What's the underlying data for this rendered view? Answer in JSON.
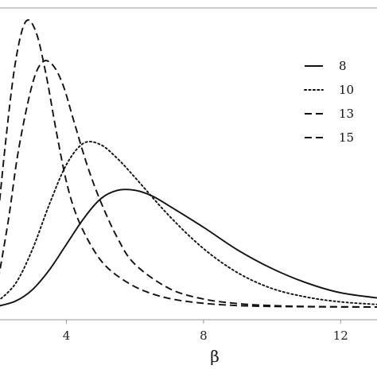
{
  "chart_data": {
    "type": "line",
    "title": "",
    "xlabel": "β",
    "ylabel": "",
    "xlim": [
      1.9,
      13.2
    ],
    "ylim": [
      0,
      1
    ],
    "x_ticks": [
      4,
      8,
      12
    ],
    "x_tick_labels": [
      "4",
      "8",
      "12"
    ],
    "grid": false,
    "legend_position": "right",
    "series": [
      {
        "name": "8",
        "line_style": "solid",
        "x": [
          1.9,
          2.5,
          3.0,
          3.5,
          4.0,
          4.5,
          5.0,
          5.5,
          6.0,
          6.5,
          7.0,
          8.0,
          9.0,
          10.0,
          11.0,
          12.0,
          13.2
        ],
        "y": [
          0.0,
          0.02,
          0.06,
          0.13,
          0.22,
          0.31,
          0.38,
          0.41,
          0.41,
          0.39,
          0.355,
          0.28,
          0.2,
          0.135,
          0.085,
          0.05,
          0.03
        ]
      },
      {
        "name": "10",
        "line_style": "dotted",
        "x": [
          1.9,
          2.5,
          3.0,
          3.5,
          4.0,
          4.5,
          5.0,
          5.5,
          6.0,
          7.0,
          8.0,
          9.0,
          10.0,
          11.0,
          12.0,
          13.2
        ],
        "y": [
          0.01,
          0.08,
          0.2,
          0.36,
          0.5,
          0.575,
          0.57,
          0.52,
          0.455,
          0.32,
          0.205,
          0.12,
          0.065,
          0.035,
          0.018,
          0.008
        ]
      },
      {
        "name": "13",
        "line_style": "dashed",
        "x": [
          1.9,
          2.3,
          2.6,
          3.0,
          3.3,
          3.6,
          3.9,
          4.2,
          4.6,
          5.0,
          5.5,
          6.0,
          7.0,
          8.0,
          9.0,
          10.0,
          11.0,
          12.0,
          13.2
        ],
        "y": [
          0.02,
          0.3,
          0.55,
          0.78,
          0.86,
          0.85,
          0.78,
          0.66,
          0.5,
          0.37,
          0.24,
          0.15,
          0.065,
          0.028,
          0.012,
          0.005,
          0.002,
          0.001,
          0.0
        ]
      },
      {
        "name": "15",
        "line_style": "dashed",
        "x": [
          1.9,
          2.2,
          2.5,
          2.8,
          3.1,
          3.4,
          3.7,
          4.0,
          4.3,
          4.7,
          5.1,
          5.6,
          6.2,
          7.0,
          8.0,
          9.0,
          10.0,
          11.0,
          12.0,
          13.2
        ],
        "y": [
          0.18,
          0.55,
          0.85,
          1.0,
          0.97,
          0.82,
          0.62,
          0.44,
          0.32,
          0.22,
          0.15,
          0.1,
          0.06,
          0.03,
          0.013,
          0.005,
          0.002,
          0.001,
          0.0,
          0.0
        ]
      }
    ]
  }
}
